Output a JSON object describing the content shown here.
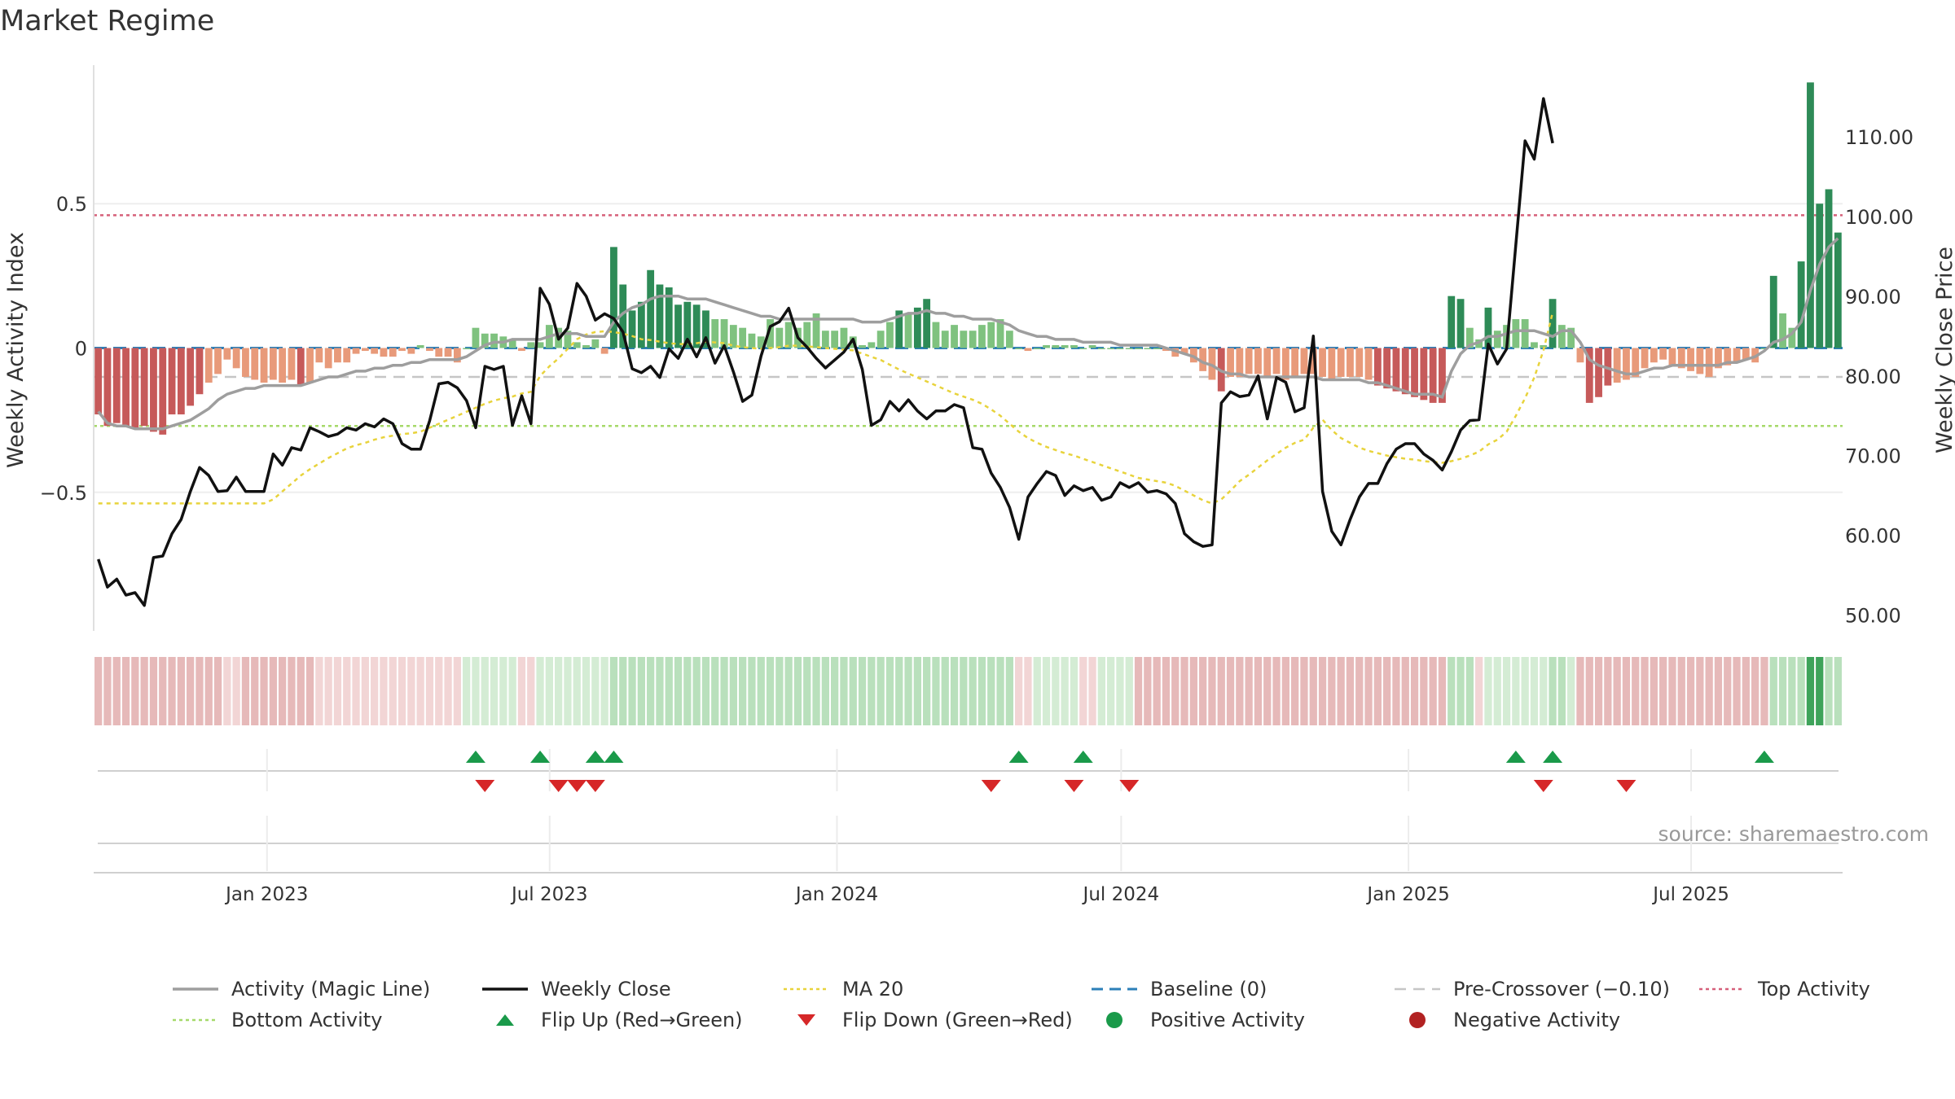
{
  "header": {
    "title": "Market Regime"
  },
  "source": "source: sharemaestro.com",
  "colors": {
    "magic_line": "#9e9e9e",
    "weekly_close": "#111111",
    "ma20": "#e8d33c",
    "baseline": "#2c7fb8",
    "pre_crossover": "#c6c6c6",
    "top_activity": "#d6607a",
    "bottom_activity": "#a6d96a",
    "flip_up": "#1a9a4a",
    "flip_down": "#d62728",
    "positive_activity": "#1a9a4a",
    "negative_activity": "#b22222",
    "bar_dark_green": "#2e8b57",
    "bar_light_green": "#7fc27f",
    "bar_dark_red": "#c65a5a",
    "bar_light_red": "#e89a7a",
    "gridline": "#eeeeee"
  },
  "chart_data": {
    "type": "bar+line",
    "title": "Market Regime",
    "y_left_label": "Weekly Activity Index",
    "y_right_label": "Weekly Close Price",
    "y_left_range": [
      -0.98,
      0.98
    ],
    "y_right_range": [
      48,
      119
    ],
    "y_left_ticks": [
      {
        "v": 0.5,
        "label": "0.5"
      },
      {
        "v": 0.0,
        "label": "0"
      },
      {
        "v": -0.5,
        "label": "−0.5"
      }
    ],
    "y_right_ticks": [
      {
        "v": 110,
        "label": "110.00"
      },
      {
        "v": 100,
        "label": "100.00"
      },
      {
        "v": 90,
        "label": "90.00"
      },
      {
        "v": 80,
        "label": "80.00"
      },
      {
        "v": 70,
        "label": "70.00"
      },
      {
        "v": 60,
        "label": "60.00"
      },
      {
        "v": 50,
        "label": "50.00"
      }
    ],
    "x_start": "2022-09-12",
    "x_end": "2025-10-06",
    "x_ticks": [
      {
        "date": "2023-01-01",
        "label": "Jan 2023"
      },
      {
        "date": "2023-07-01",
        "label": "Jul 2023"
      },
      {
        "date": "2024-01-01",
        "label": "Jan 2024"
      },
      {
        "date": "2024-07-01",
        "label": "Jul 2024"
      },
      {
        "date": "2025-01-01",
        "label": "Jan 2025"
      },
      {
        "date": "2025-07-01",
        "label": "Jul 2025"
      }
    ],
    "reference_lines": {
      "baseline": 0,
      "pre_crossover": -0.1,
      "top_activity": 0.46,
      "bottom_activity": -0.27
    },
    "activity_bars": [
      -0.23,
      -0.27,
      -0.26,
      -0.27,
      -0.28,
      -0.27,
      -0.29,
      -0.3,
      -0.23,
      -0.23,
      -0.2,
      -0.16,
      -0.12,
      -0.09,
      -0.04,
      -0.07,
      -0.1,
      -0.11,
      -0.12,
      -0.11,
      -0.12,
      -0.11,
      -0.13,
      -0.12,
      -0.05,
      -0.07,
      -0.05,
      -0.05,
      -0.02,
      -0.01,
      -0.02,
      -0.03,
      -0.03,
      -0.01,
      -0.02,
      0.01,
      -0.01,
      -0.03,
      -0.03,
      -0.05,
      0.0,
      0.07,
      0.05,
      0.05,
      0.04,
      0.03,
      -0.01,
      0.02,
      0.02,
      0.08,
      0.07,
      0.06,
      0.02,
      0.01,
      0.03,
      -0.02,
      0.35,
      0.22,
      0.13,
      0.16,
      0.27,
      0.22,
      0.21,
      0.15,
      0.16,
      0.15,
      0.13,
      0.1,
      0.1,
      0.08,
      0.07,
      0.05,
      0.04,
      0.1,
      0.07,
      0.09,
      0.07,
      0.09,
      0.12,
      0.06,
      0.06,
      0.07,
      0.04,
      0.01,
      0.02,
      0.06,
      0.09,
      0.13,
      0.12,
      0.14,
      0.17,
      0.09,
      0.06,
      0.08,
      0.06,
      0.06,
      0.08,
      0.09,
      0.1,
      0.06,
      0.0,
      -0.01,
      0.0,
      0.01,
      0.01,
      0.01,
      0.01,
      0.0,
      0.01,
      0.0,
      0.0,
      0.0,
      0.0,
      0.0,
      0.0,
      0.0,
      -0.01,
      -0.03,
      -0.02,
      -0.05,
      -0.08,
      -0.11,
      -0.15,
      -0.1,
      -0.1,
      -0.09,
      -0.09,
      -0.1,
      -0.09,
      -0.11,
      -0.1,
      -0.09,
      -0.09,
      -0.1,
      -0.11,
      -0.1,
      -0.1,
      -0.1,
      -0.11,
      -0.13,
      -0.14,
      -0.15,
      -0.16,
      -0.17,
      -0.18,
      -0.19,
      -0.19,
      0.18,
      0.17,
      0.07,
      0.03,
      0.14,
      0.06,
      0.08,
      0.1,
      0.1,
      0.02,
      0.01,
      0.17,
      0.08,
      0.07,
      -0.05,
      -0.19,
      -0.17,
      -0.13,
      -0.12,
      -0.11,
      -0.1,
      -0.07,
      -0.05,
      -0.04,
      -0.06,
      -0.07,
      -0.08,
      -0.09,
      -0.1,
      -0.07,
      -0.06,
      -0.05,
      -0.04,
      -0.05,
      0.0,
      0.25,
      0.12,
      0.07,
      0.3,
      0.92,
      0.5,
      0.55,
      0.4
    ],
    "weekly_close": [
      57,
      53.5,
      54.5,
      52.5,
      52.8,
      51.2,
      57.2,
      57.4,
      60.2,
      62,
      65.5,
      68.5,
      67.5,
      65.5,
      65.6,
      67.3,
      65.5,
      65.5,
      65.5,
      70.2,
      68.8,
      71,
      70.7,
      73.5,
      73,
      72.4,
      72.7,
      73.5,
      73.2,
      74,
      73.6,
      74.6,
      74,
      71.5,
      70.8,
      70.8,
      74.4,
      79,
      79.2,
      78.5,
      76.9,
      73.5,
      81.2,
      80.8,
      81.2,
      73.8,
      77.5,
      74,
      91,
      89,
      84.6,
      86,
      91.6,
      90,
      87,
      87.8,
      87.2,
      85.5,
      80.9,
      80.4,
      81.2,
      79.8,
      83.4,
      82.2,
      84.6,
      82.4,
      84.8,
      81.6,
      83.8,
      80.5,
      76.8,
      77.6,
      82.5,
      86.2,
      86.8,
      88.5,
      84.8,
      83.6,
      82.2,
      81,
      82,
      83,
      84.6,
      80.8,
      73.8,
      74.5,
      76.8,
      75.6,
      77,
      75.6,
      74.6,
      75.6,
      75.6,
      76.4,
      76,
      71,
      70.8,
      67.8,
      66,
      63.5,
      59.5,
      64.8,
      66.5,
      68,
      67.5,
      65,
      66.2,
      65.6,
      66,
      64.4,
      64.8,
      66.6,
      66,
      66.6,
      65.4,
      65.6,
      65.2,
      64,
      60.2,
      59.2,
      58.6,
      58.8,
      76.6,
      78,
      77.4,
      77.6,
      80,
      74.6,
      79.8,
      79.2,
      75.5,
      76,
      85,
      65.5,
      60.5,
      58.8,
      62,
      64.8,
      66.5,
      66.5,
      69,
      70.8,
      71.5,
      71.5,
      70.2,
      69.4,
      68.2,
      70.5,
      73.2,
      74.4,
      74.5,
      84,
      81.5,
      83.4,
      96.5,
      109.5,
      107.2,
      114.8,
      109.2
    ],
    "ma20": [
      64,
      64,
      64,
      64,
      64,
      64,
      64,
      64,
      64,
      64,
      64,
      64,
      64,
      64,
      64,
      64,
      64,
      64,
      64,
      64.5,
      65.5,
      66.5,
      67.5,
      68.3,
      69,
      69.7,
      70.3,
      70.9,
      71.3,
      71.6,
      72,
      72.3,
      72.5,
      72.7,
      72.8,
      73,
      73.5,
      74,
      74.5,
      75,
      75.5,
      76,
      76.5,
      76.9,
      77.2,
      77.4,
      77.8,
      78,
      80,
      81.2,
      82.2,
      83.4,
      84.6,
      85.2,
      85.5,
      85.6,
      85.5,
      85.3,
      85,
      84.6,
      84.5,
      84.3,
      84.1,
      84,
      84,
      84.1,
      84.3,
      84.2,
      84.1,
      83.8,
      83.6,
      83.5,
      83.4,
      83.5,
      83.6,
      83.8,
      83.8,
      83.7,
      83.6,
      83.5,
      83.4,
      83.3,
      83.2,
      82.8,
      82.4,
      82,
      81.4,
      80.8,
      80.3,
      79.8,
      79.3,
      78.8,
      78.3,
      77.8,
      77.4,
      77,
      76.5,
      75.8,
      75,
      74,
      73,
      72.2,
      71.6,
      71.1,
      70.7,
      70.3,
      70,
      69.6,
      69.2,
      68.8,
      68.4,
      68,
      67.6,
      67.2,
      67,
      66.8,
      66.6,
      66.2,
      65.6,
      65,
      64.4,
      64,
      64.5,
      65.6,
      66.8,
      67.6,
      68.5,
      69.4,
      70.2,
      71,
      71.6,
      72,
      73.5,
      74.5,
      73.2,
      72.2,
      71.6,
      71,
      70.6,
      70.3,
      70,
      69.8,
      69.6,
      69.5,
      69.3,
      69.2,
      69.1,
      69.3,
      69.6,
      70,
      70.5,
      71.4,
      72,
      73,
      75,
      77.2,
      79.8,
      83.2,
      88
    ],
    "magic_line": [
      -0.22,
      -0.26,
      -0.27,
      -0.27,
      -0.28,
      -0.28,
      -0.28,
      -0.28,
      -0.27,
      -0.26,
      -0.25,
      -0.23,
      -0.21,
      -0.18,
      -0.16,
      -0.15,
      -0.14,
      -0.14,
      -0.13,
      -0.13,
      -0.13,
      -0.13,
      -0.13,
      -0.12,
      -0.11,
      -0.1,
      -0.1,
      -0.09,
      -0.08,
      -0.08,
      -0.07,
      -0.07,
      -0.06,
      -0.06,
      -0.05,
      -0.05,
      -0.04,
      -0.04,
      -0.04,
      -0.04,
      -0.03,
      -0.01,
      0.01,
      0.02,
      0.02,
      0.03,
      0.03,
      0.03,
      0.03,
      0.04,
      0.05,
      0.05,
      0.05,
      0.04,
      0.04,
      0.04,
      0.09,
      0.12,
      0.14,
      0.15,
      0.17,
      0.18,
      0.18,
      0.18,
      0.17,
      0.17,
      0.17,
      0.16,
      0.15,
      0.14,
      0.13,
      0.12,
      0.11,
      0.11,
      0.1,
      0.1,
      0.1,
      0.1,
      0.1,
      0.1,
      0.1,
      0.1,
      0.1,
      0.09,
      0.09,
      0.09,
      0.1,
      0.11,
      0.12,
      0.12,
      0.13,
      0.12,
      0.12,
      0.11,
      0.11,
      0.1,
      0.1,
      0.1,
      0.09,
      0.08,
      0.06,
      0.05,
      0.04,
      0.04,
      0.03,
      0.03,
      0.03,
      0.02,
      0.02,
      0.02,
      0.02,
      0.01,
      0.01,
      0.01,
      0.01,
      0.01,
      0.0,
      -0.01,
      -0.02,
      -0.03,
      -0.05,
      -0.06,
      -0.08,
      -0.09,
      -0.09,
      -0.1,
      -0.1,
      -0.1,
      -0.1,
      -0.1,
      -0.1,
      -0.1,
      -0.1,
      -0.11,
      -0.11,
      -0.11,
      -0.11,
      -0.11,
      -0.12,
      -0.12,
      -0.13,
      -0.14,
      -0.15,
      -0.16,
      -0.16,
      -0.16,
      -0.17,
      -0.08,
      -0.02,
      0.01,
      0.02,
      0.04,
      0.04,
      0.05,
      0.06,
      0.06,
      0.06,
      0.05,
      0.04,
      0.06,
      0.06,
      0.02,
      -0.04,
      -0.06,
      -0.07,
      -0.08,
      -0.09,
      -0.09,
      -0.08,
      -0.07,
      -0.07,
      -0.06,
      -0.06,
      -0.06,
      -0.06,
      -0.06,
      -0.06,
      -0.05,
      -0.05,
      -0.04,
      -0.03,
      -0.01,
      0.02,
      0.03,
      0.05,
      0.09,
      0.2,
      0.29,
      0.35,
      0.38
    ],
    "regime_strip": [
      -2,
      -2,
      -2,
      -2,
      -2,
      -2,
      -2,
      -2,
      -2,
      -2,
      -2,
      -2,
      -2,
      -2,
      -1,
      -1,
      -2,
      -2,
      -2,
      -2,
      -2,
      -2,
      -2,
      -2,
      -1,
      -1,
      -1,
      -1,
      -1,
      -1,
      -1,
      -1,
      -1,
      -1,
      -1,
      -1,
      -1,
      -1,
      -1,
      -1,
      1,
      1,
      1,
      1,
      1,
      1,
      -1,
      -1,
      1,
      1,
      1,
      1,
      1,
      1,
      1,
      1,
      2,
      2,
      2,
      2,
      2,
      2,
      2,
      2,
      2,
      2,
      2,
      2,
      2,
      2,
      2,
      2,
      2,
      2,
      2,
      2,
      2,
      2,
      2,
      2,
      2,
      2,
      2,
      2,
      2,
      2,
      2,
      2,
      2,
      2,
      2,
      2,
      2,
      2,
      2,
      2,
      2,
      2,
      2,
      2,
      -1,
      -1,
      1,
      1,
      1,
      1,
      1,
      -1,
      -1,
      1,
      1,
      1,
      1,
      -2,
      -2,
      -2,
      -2,
      -2,
      -2,
      -2,
      -2,
      -2,
      -2,
      -2,
      -2,
      -2,
      -2,
      -2,
      -2,
      -2,
      -2,
      -2,
      -2,
      -2,
      -2,
      -2,
      -2,
      -2,
      -2,
      -2,
      -2,
      -2,
      -2,
      -2,
      -2,
      -2,
      -2,
      2,
      2,
      2,
      -1,
      1,
      1,
      1,
      1,
      1,
      1,
      1,
      2,
      2,
      1,
      -2,
      -2,
      -2,
      -2,
      -2,
      -2,
      -2,
      -2,
      -2,
      -2,
      -2,
      -2,
      -2,
      -2,
      -2,
      -2,
      -2,
      -2,
      -2,
      -2,
      -2,
      2,
      2,
      2,
      2,
      3,
      3,
      2,
      2
    ],
    "flip_up_indices": [
      41,
      48,
      54,
      56,
      100,
      107,
      154,
      158,
      181
    ],
    "flip_down_indices": [
      42,
      50,
      52,
      54,
      97,
      106,
      112,
      157,
      166
    ],
    "legend": [
      {
        "key": "magic_line",
        "label": "Activity (Magic Line)"
      },
      {
        "key": "weekly_close",
        "label": "Weekly Close"
      },
      {
        "key": "ma20",
        "label": "MA 20"
      },
      {
        "key": "baseline",
        "label": "Baseline (0)"
      },
      {
        "key": "pre_crossover",
        "label": "Pre-Crossover (−0.10)"
      },
      {
        "key": "top_activity",
        "label": "Top Activity"
      },
      {
        "key": "bottom_activity",
        "label": "Bottom Activity"
      },
      {
        "key": "flip_up",
        "label": "Flip Up (Red→Green)"
      },
      {
        "key": "flip_down",
        "label": "Flip Down (Green→Red)"
      },
      {
        "key": "positive_activity",
        "label": "Positive Activity"
      },
      {
        "key": "negative_activity",
        "label": "Negative Activity"
      }
    ],
    "legend_placement": "bottom"
  }
}
